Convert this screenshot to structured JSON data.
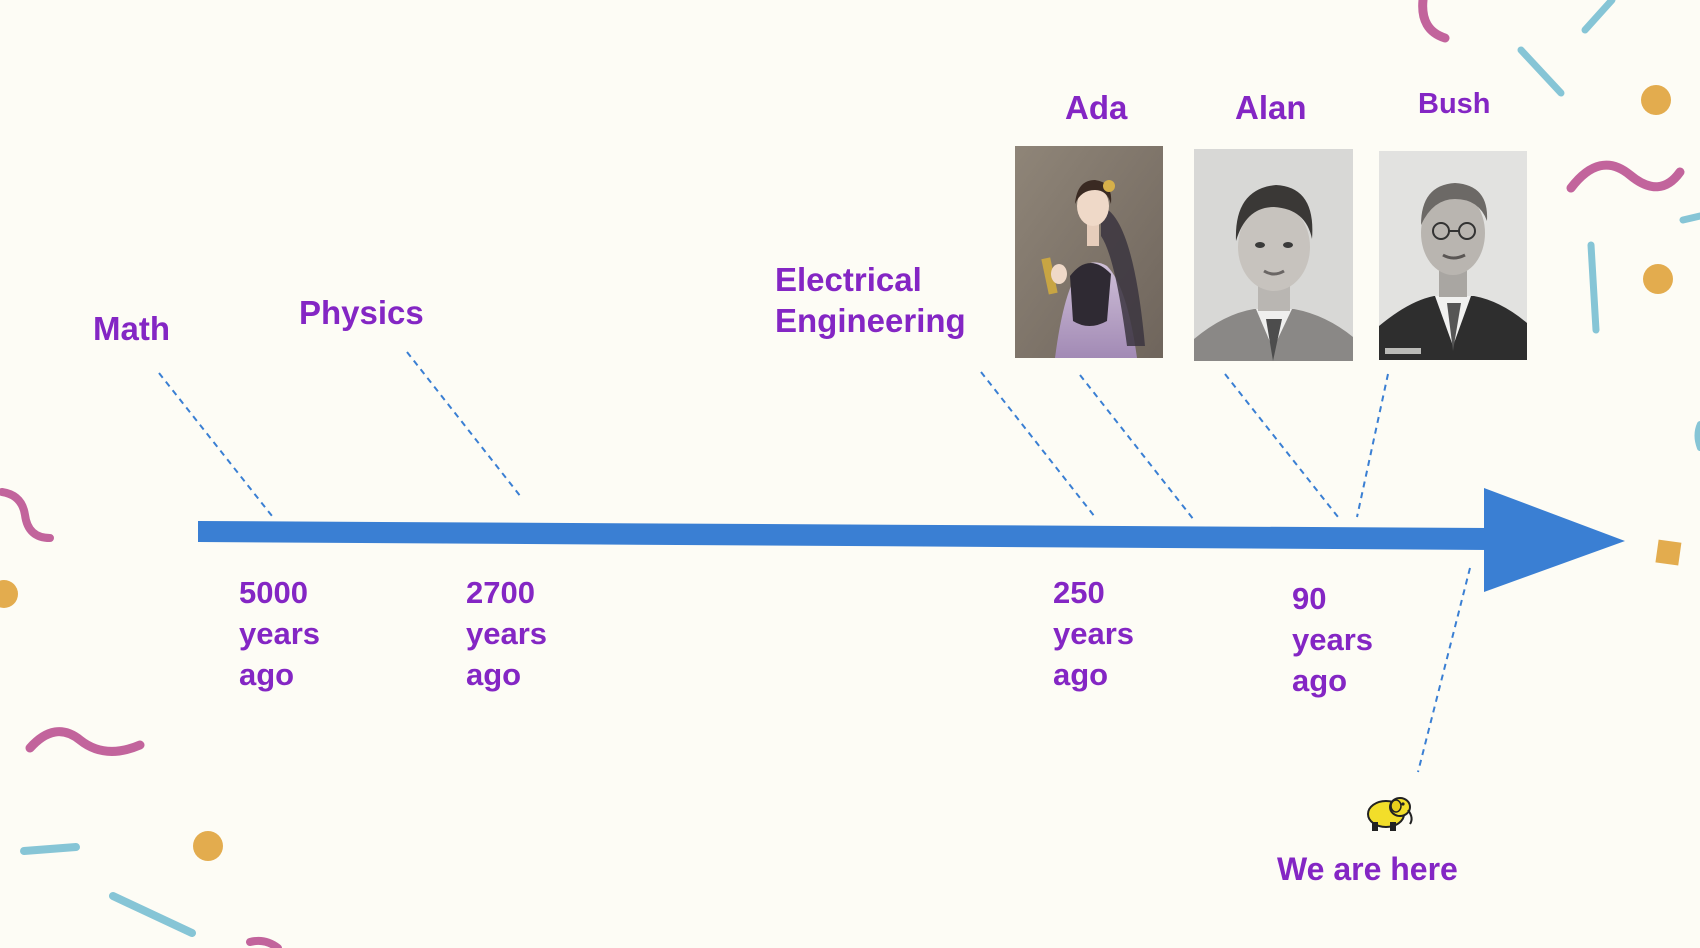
{
  "fields": [
    {
      "name": "Math",
      "ago_number": "5000",
      "ago_unit": "years",
      "ago_word": "ago"
    },
    {
      "name": "Physics",
      "ago_number": "2700",
      "ago_unit": "years",
      "ago_word": "ago"
    },
    {
      "name_line1": "Electrical",
      "name_line2": "Engineering",
      "ago_number": "250",
      "ago_unit": "years",
      "ago_word": "ago"
    }
  ],
  "people": [
    {
      "name": "Ada",
      "photo": "portrait of Ada Lovelace"
    },
    {
      "name": "Alan",
      "photo": "portrait of Alan Turing"
    },
    {
      "name": "Bush",
      "photo": "portrait of Vannevar Bush"
    }
  ],
  "recent": {
    "ago_number": "90",
    "ago_unit": "years",
    "ago_word": "ago"
  },
  "now": {
    "label": "We are here",
    "icon": "yellow-elephant-icon"
  },
  "colors": {
    "text": "#8426c4",
    "arrow": "#3a7fd3",
    "connector": "#3a7fd3",
    "confetti_pink": "#c2649c",
    "confetti_teal": "#86c5d6",
    "confetti_gold": "#e3ac4e",
    "background": "#fdfcf5"
  }
}
